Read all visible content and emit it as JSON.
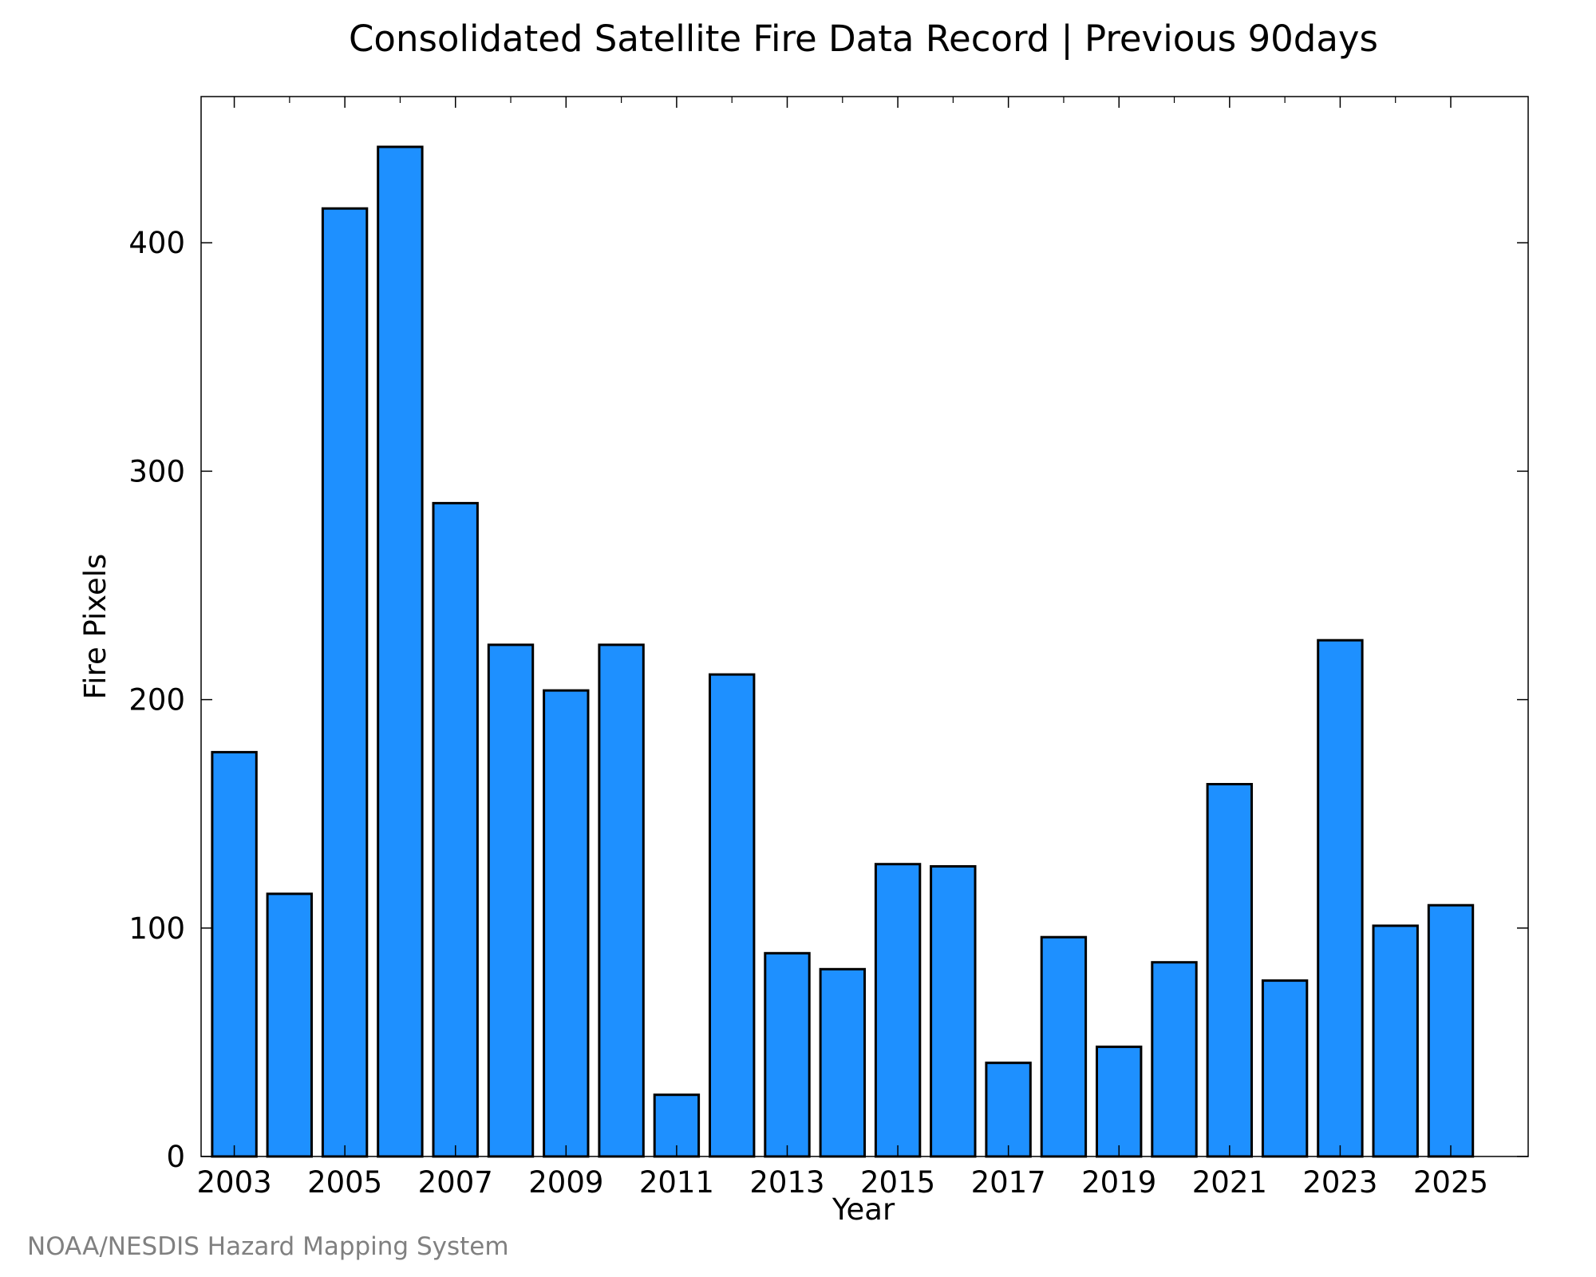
{
  "chart_data": {
    "type": "bar",
    "title": "Consolidated Satellite Fire Data Record | Previous 90days",
    "xlabel": "Year",
    "ylabel": "Fire Pixels",
    "categories": [
      "2003",
      "2004",
      "2005",
      "2006",
      "2007",
      "2008",
      "2009",
      "2010",
      "2011",
      "2012",
      "2013",
      "2014",
      "2015",
      "2016",
      "2017",
      "2018",
      "2019",
      "2020",
      "2021",
      "2022",
      "2023",
      "2024",
      "2025"
    ],
    "values": [
      177,
      115,
      415,
      442,
      286,
      224,
      204,
      224,
      27,
      211,
      89,
      82,
      128,
      127,
      41,
      96,
      48,
      85,
      163,
      77,
      226,
      101,
      110
    ],
    "x_tick_labels": [
      "2003",
      "2005",
      "2007",
      "2009",
      "2011",
      "2013",
      "2015",
      "2017",
      "2019",
      "2021",
      "2023",
      "2025"
    ],
    "y_ticks": [
      0,
      100,
      200,
      300,
      400
    ],
    "ylim": [
      0,
      464
    ],
    "bar_color": "#1e90ff",
    "bar_edge_color": "#000000",
    "grid": false,
    "legend": "none"
  },
  "credit": "NOAA/NESDIS Hazard Mapping System"
}
